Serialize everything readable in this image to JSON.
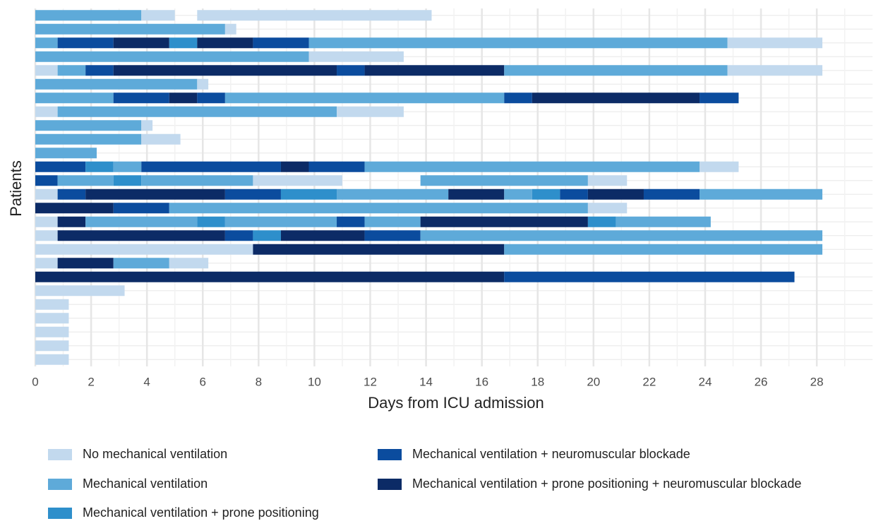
{
  "chart_data": {
    "type": "swimmer",
    "x_label": "Days from ICU admission",
    "y_label": "Patients",
    "xlim": [
      0,
      30
    ],
    "xticks": [
      0,
      2,
      4,
      6,
      8,
      10,
      12,
      14,
      16,
      18,
      20,
      22,
      24,
      26,
      28
    ],
    "grid": true,
    "series": [
      {
        "name": "No mechanical ventilation",
        "color": "#c2d9ee"
      },
      {
        "name": "Mechanical ventilation",
        "color": "#5eaad9"
      },
      {
        "name": "Mechanical ventilation + prone positioning",
        "color": "#2e8fcb"
      },
      {
        "name": "Mechanical ventilation + neuromuscular blockade",
        "color": "#0b4c9e"
      },
      {
        "name": "Mechanical ventilation + prone positioning + neuromuscular blockade",
        "color": "#0c2b66"
      }
    ],
    "rows": [
      [
        {
          "start": 0,
          "end": 3.8,
          "series": 1
        },
        {
          "start": 3.8,
          "end": 5.0,
          "series": 0
        },
        {
          "start": 5.8,
          "end": 14.2,
          "series": 0
        }
      ],
      [
        {
          "start": 0,
          "end": 6.8,
          "series": 1
        },
        {
          "start": 6.8,
          "end": 7.2,
          "series": 0
        }
      ],
      [
        {
          "start": 0,
          "end": 0.8,
          "series": 1
        },
        {
          "start": 0.8,
          "end": 2.8,
          "series": 3
        },
        {
          "start": 2.8,
          "end": 4.8,
          "series": 4
        },
        {
          "start": 4.8,
          "end": 5.8,
          "series": 2
        },
        {
          "start": 5.8,
          "end": 7.8,
          "series": 4
        },
        {
          "start": 7.8,
          "end": 9.8,
          "series": 3
        },
        {
          "start": 9.8,
          "end": 24.8,
          "series": 1
        },
        {
          "start": 24.8,
          "end": 28.2,
          "series": 0
        }
      ],
      [
        {
          "start": 0,
          "end": 9.8,
          "series": 1
        },
        {
          "start": 9.8,
          "end": 13.2,
          "series": 0
        }
      ],
      [
        {
          "start": 0,
          "end": 0.8,
          "series": 0
        },
        {
          "start": 0.8,
          "end": 1.8,
          "series": 1
        },
        {
          "start": 1.8,
          "end": 2.8,
          "series": 3
        },
        {
          "start": 2.8,
          "end": 10.8,
          "series": 4
        },
        {
          "start": 10.8,
          "end": 11.8,
          "series": 3
        },
        {
          "start": 11.8,
          "end": 16.8,
          "series": 4
        },
        {
          "start": 16.8,
          "end": 24.8,
          "series": 1
        },
        {
          "start": 24.8,
          "end": 28.2,
          "series": 0
        }
      ],
      [
        {
          "start": 0,
          "end": 5.8,
          "series": 1
        },
        {
          "start": 5.8,
          "end": 6.2,
          "series": 0
        }
      ],
      [
        {
          "start": 0,
          "end": 2.8,
          "series": 1
        },
        {
          "start": 2.8,
          "end": 4.8,
          "series": 3
        },
        {
          "start": 4.8,
          "end": 5.8,
          "series": 4
        },
        {
          "start": 5.8,
          "end": 6.8,
          "series": 3
        },
        {
          "start": 6.8,
          "end": 16.8,
          "series": 1
        },
        {
          "start": 16.8,
          "end": 17.8,
          "series": 3
        },
        {
          "start": 17.8,
          "end": 23.8,
          "series": 4
        },
        {
          "start": 23.8,
          "end": 25.2,
          "series": 3
        }
      ],
      [
        {
          "start": 0,
          "end": 0.8,
          "series": 0
        },
        {
          "start": 0.8,
          "end": 10.8,
          "series": 1
        },
        {
          "start": 10.8,
          "end": 13.2,
          "series": 0
        }
      ],
      [
        {
          "start": 0,
          "end": 3.8,
          "series": 1
        },
        {
          "start": 3.8,
          "end": 4.2,
          "series": 0
        }
      ],
      [
        {
          "start": 0,
          "end": 3.8,
          "series": 1
        },
        {
          "start": 3.8,
          "end": 5.2,
          "series": 0
        }
      ],
      [
        {
          "start": 0,
          "end": 2.2,
          "series": 1
        }
      ],
      [
        {
          "start": 0,
          "end": 1.8,
          "series": 3
        },
        {
          "start": 1.8,
          "end": 2.8,
          "series": 2
        },
        {
          "start": 2.8,
          "end": 3.8,
          "series": 1
        },
        {
          "start": 3.8,
          "end": 8.8,
          "series": 3
        },
        {
          "start": 8.8,
          "end": 9.8,
          "series": 4
        },
        {
          "start": 9.8,
          "end": 11.8,
          "series": 3
        },
        {
          "start": 11.8,
          "end": 23.8,
          "series": 1
        },
        {
          "start": 23.8,
          "end": 25.2,
          "series": 0
        }
      ],
      [
        {
          "start": 0,
          "end": 0.8,
          "series": 3
        },
        {
          "start": 0.8,
          "end": 2.8,
          "series": 1
        },
        {
          "start": 2.8,
          "end": 3.8,
          "series": 2
        },
        {
          "start": 3.8,
          "end": 7.8,
          "series": 1
        },
        {
          "start": 7.8,
          "end": 11.0,
          "series": 0
        },
        {
          "start": 13.8,
          "end": 19.8,
          "series": 1
        },
        {
          "start": 19.8,
          "end": 21.2,
          "series": 0
        }
      ],
      [
        {
          "start": 0,
          "end": 0.8,
          "series": 0
        },
        {
          "start": 0.8,
          "end": 1.8,
          "series": 3
        },
        {
          "start": 1.8,
          "end": 6.8,
          "series": 4
        },
        {
          "start": 6.8,
          "end": 8.8,
          "series": 3
        },
        {
          "start": 8.8,
          "end": 10.8,
          "series": 2
        },
        {
          "start": 10.8,
          "end": 14.8,
          "series": 1
        },
        {
          "start": 14.8,
          "end": 16.8,
          "series": 4
        },
        {
          "start": 16.8,
          "end": 17.8,
          "series": 1
        },
        {
          "start": 17.8,
          "end": 18.8,
          "series": 2
        },
        {
          "start": 18.8,
          "end": 19.8,
          "series": 3
        },
        {
          "start": 19.8,
          "end": 21.8,
          "series": 4
        },
        {
          "start": 21.8,
          "end": 23.8,
          "series": 3
        },
        {
          "start": 23.8,
          "end": 28.2,
          "series": 1
        }
      ],
      [
        {
          "start": 0,
          "end": 2.8,
          "series": 4
        },
        {
          "start": 2.8,
          "end": 4.8,
          "series": 3
        },
        {
          "start": 4.8,
          "end": 19.8,
          "series": 1
        },
        {
          "start": 19.8,
          "end": 21.2,
          "series": 0
        }
      ],
      [
        {
          "start": 0,
          "end": 0.8,
          "series": 0
        },
        {
          "start": 0.8,
          "end": 1.8,
          "series": 4
        },
        {
          "start": 1.8,
          "end": 5.8,
          "series": 1
        },
        {
          "start": 5.8,
          "end": 6.8,
          "series": 2
        },
        {
          "start": 6.8,
          "end": 10.8,
          "series": 1
        },
        {
          "start": 10.8,
          "end": 11.8,
          "series": 3
        },
        {
          "start": 11.8,
          "end": 13.8,
          "series": 1
        },
        {
          "start": 13.8,
          "end": 19.8,
          "series": 4
        },
        {
          "start": 19.8,
          "end": 20.8,
          "series": 2
        },
        {
          "start": 20.8,
          "end": 24.2,
          "series": 1
        }
      ],
      [
        {
          "start": 0,
          "end": 0.8,
          "series": 0
        },
        {
          "start": 0.8,
          "end": 6.8,
          "series": 4
        },
        {
          "start": 6.8,
          "end": 7.8,
          "series": 3
        },
        {
          "start": 7.8,
          "end": 8.8,
          "series": 2
        },
        {
          "start": 8.8,
          "end": 11.8,
          "series": 4
        },
        {
          "start": 11.8,
          "end": 13.8,
          "series": 3
        },
        {
          "start": 13.8,
          "end": 28.2,
          "series": 1
        }
      ],
      [
        {
          "start": 0,
          "end": 7.8,
          "series": 0
        },
        {
          "start": 7.8,
          "end": 16.8,
          "series": 4
        },
        {
          "start": 16.8,
          "end": 28.2,
          "series": 1
        }
      ],
      [
        {
          "start": 0,
          "end": 0.8,
          "series": 0
        },
        {
          "start": 0.8,
          "end": 2.8,
          "series": 4
        },
        {
          "start": 2.8,
          "end": 4.8,
          "series": 1
        },
        {
          "start": 4.8,
          "end": 6.2,
          "series": 0
        }
      ],
      [
        {
          "start": 0,
          "end": 16.8,
          "series": 4
        },
        {
          "start": 16.8,
          "end": 27.2,
          "series": 3
        }
      ],
      [
        {
          "start": 0,
          "end": 3.2,
          "series": 0
        }
      ],
      [
        {
          "start": 0,
          "end": 1.2,
          "series": 0
        }
      ],
      [
        {
          "start": 0,
          "end": 1.2,
          "series": 0
        }
      ],
      [
        {
          "start": 0,
          "end": 1.2,
          "series": 0
        }
      ],
      [
        {
          "start": 0,
          "end": 1.2,
          "series": 0
        }
      ],
      [
        {
          "start": 0,
          "end": 1.2,
          "series": 0
        }
      ]
    ]
  }
}
